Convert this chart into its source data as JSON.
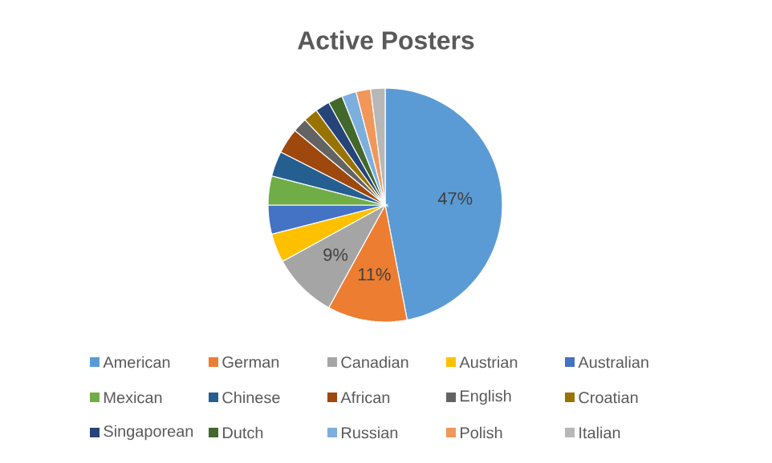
{
  "chart_data": {
    "type": "pie",
    "title": "Active Posters",
    "categories": [
      "American",
      "German",
      "Canadian",
      "Austrian",
      "Australian",
      "Mexican",
      "Chinese",
      "African",
      "English",
      "Croatian",
      "Singaporean",
      "Dutch",
      "Russian",
      "Polish",
      "Italian"
    ],
    "values": [
      47,
      11,
      9,
      4,
      4,
      4,
      3.5,
      3.5,
      2,
      2,
      2,
      2,
      2,
      2,
      2
    ],
    "value_labels": [
      "47%",
      "11%",
      "9%",
      null,
      null,
      null,
      null,
      null,
      null,
      null,
      null,
      null,
      null,
      null,
      null
    ],
    "colors": [
      "#5b9bd5",
      "#ed7d31",
      "#a5a5a5",
      "#ffc000",
      "#4472c4",
      "#70ad47",
      "#255e91",
      "#9e480e",
      "#636363",
      "#997300",
      "#264478",
      "#43682b",
      "#7cafdd",
      "#f1975a",
      "#b7b7b7"
    ],
    "legend": "bottom"
  }
}
